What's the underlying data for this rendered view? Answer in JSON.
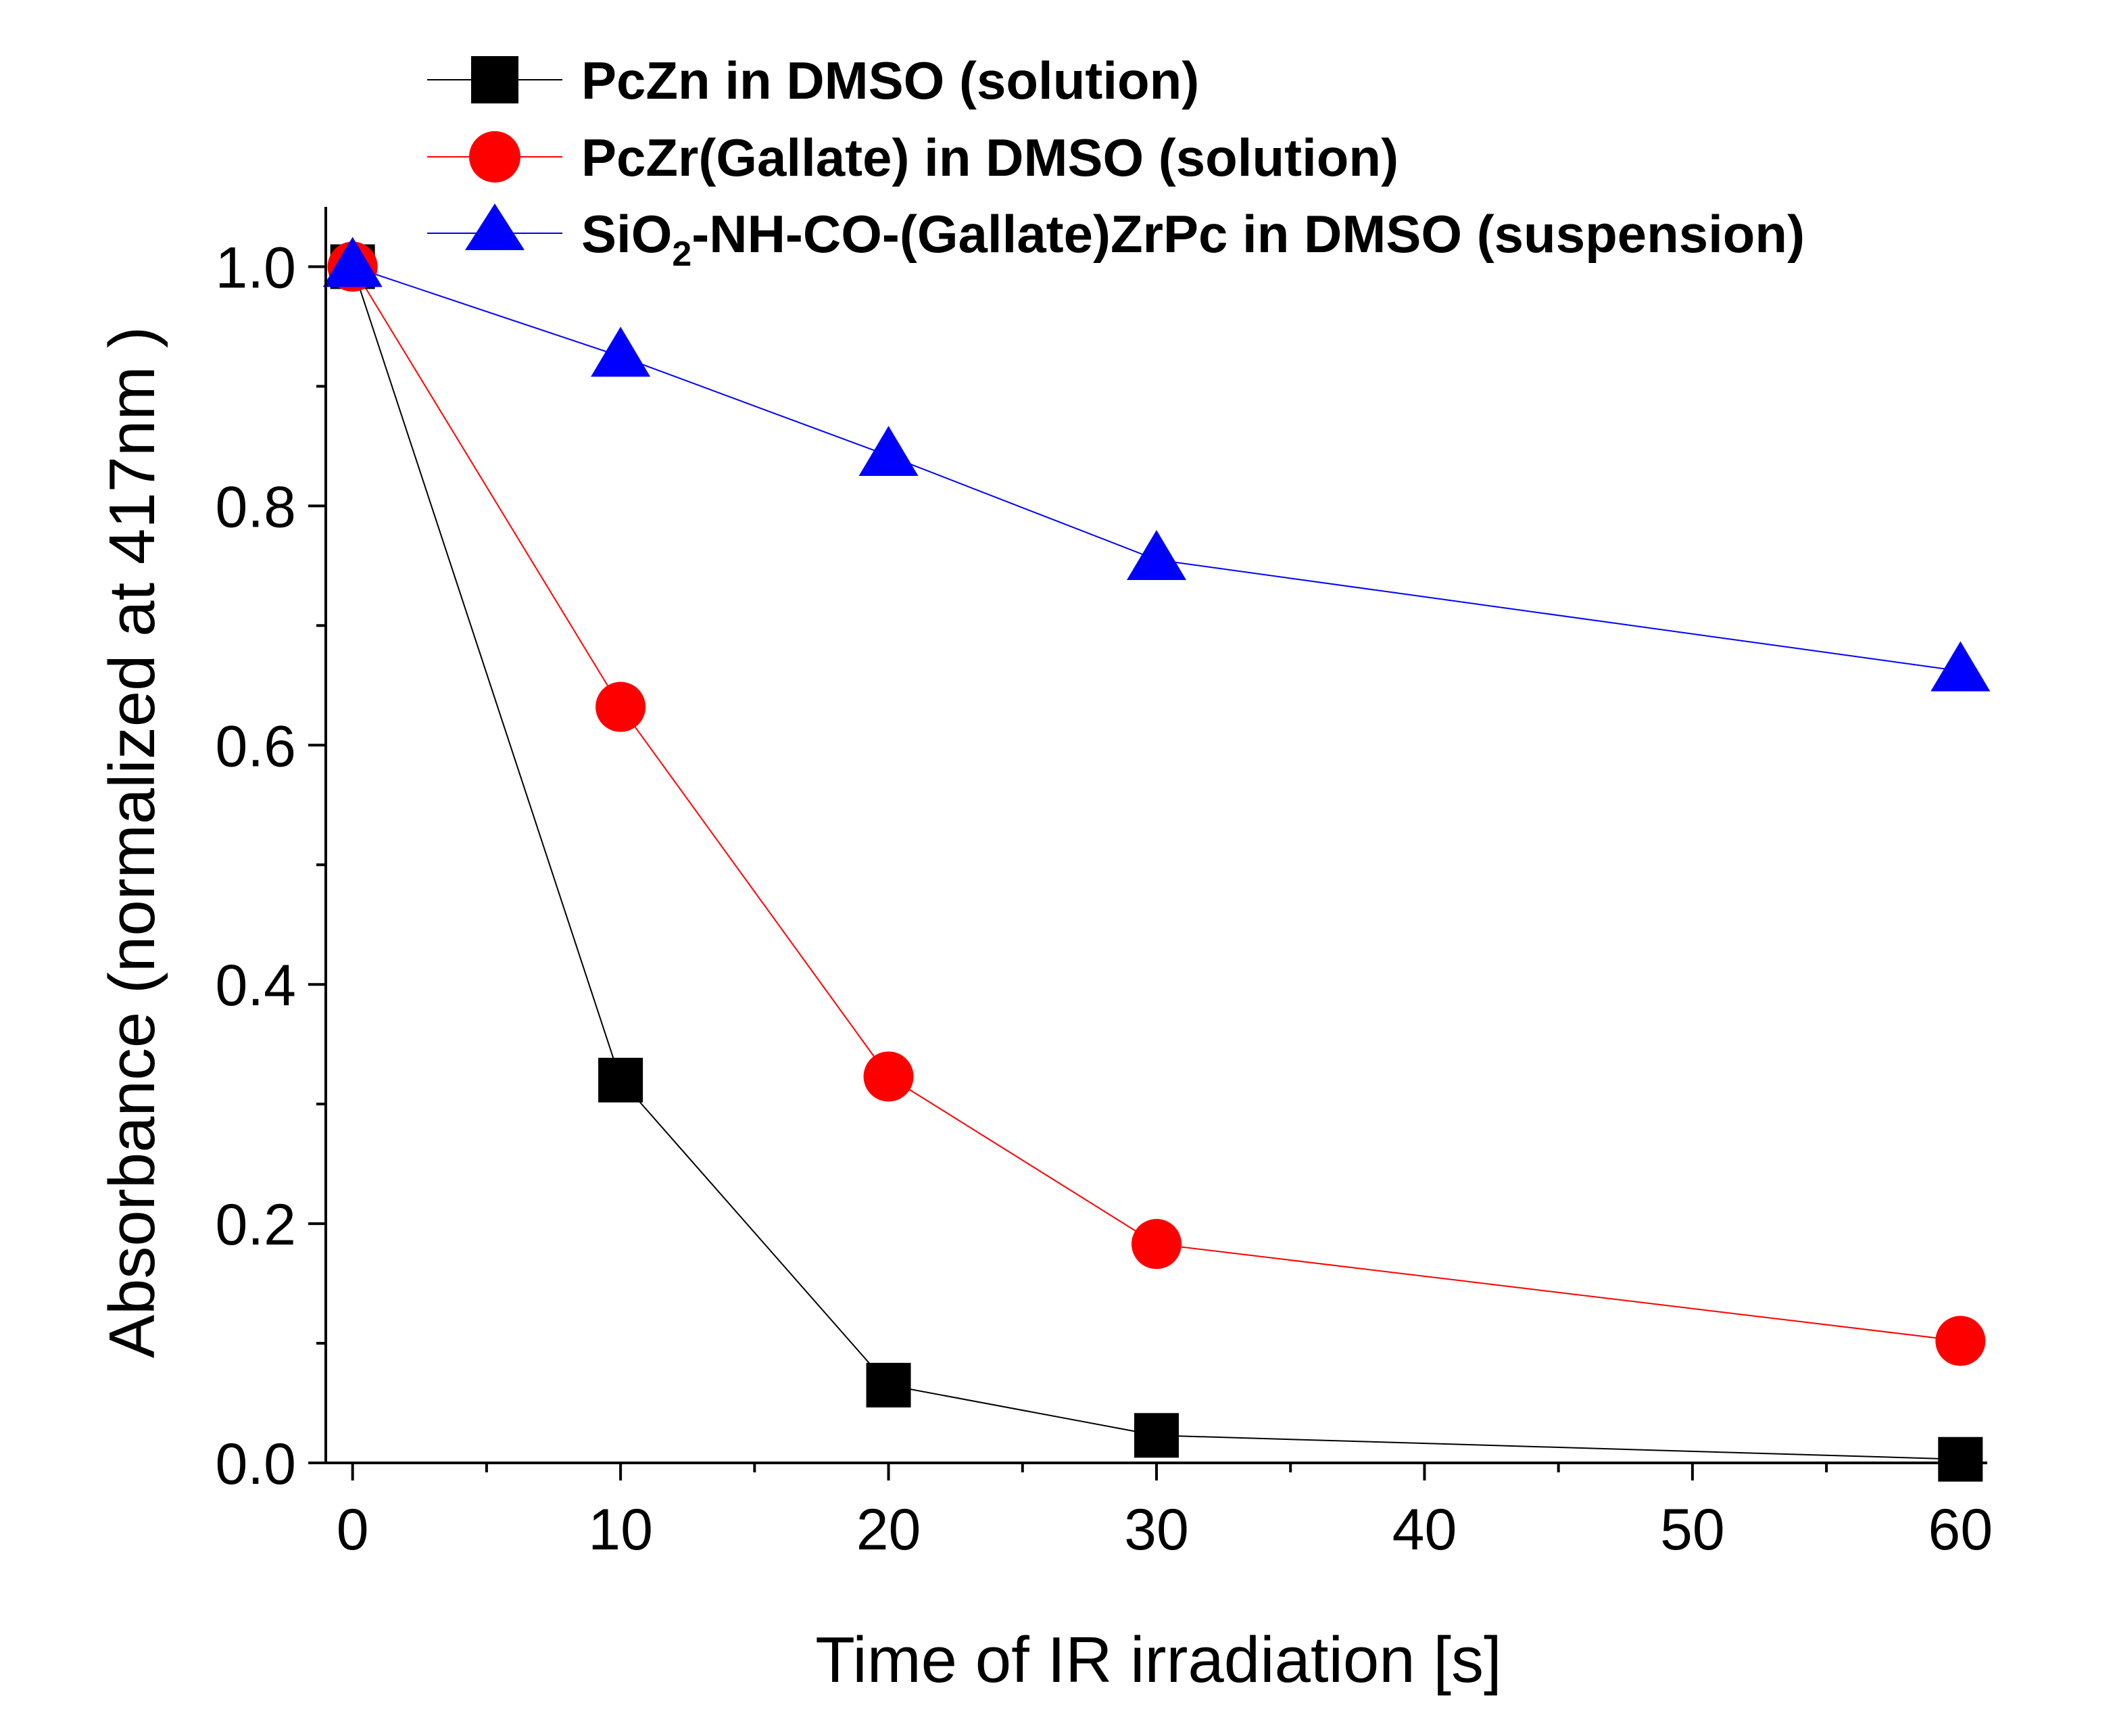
{
  "chart_data": {
    "type": "line",
    "title": "",
    "xlabel": "Time of IR irradiation [s]",
    "ylabel": "Absorbance (normalized at 417nm )",
    "xlim": [
      -1,
      61
    ],
    "ylim": [
      0.0,
      1.05
    ],
    "xticks": [
      0,
      10,
      20,
      30,
      40,
      50,
      60
    ],
    "xtick_labels": [
      "0",
      "10",
      "20",
      "30",
      "40",
      "50",
      "60"
    ],
    "yticks": [
      0.0,
      0.2,
      0.4,
      0.6,
      0.8,
      1.0
    ],
    "ytick_labels": [
      "0.0",
      "0.2",
      "0.4",
      "0.6",
      "0.8",
      "1.0"
    ],
    "grid": false,
    "legend_position": "top",
    "series": [
      {
        "name": "PcZn in DMSO (solution)",
        "marker": "square",
        "color": "#000000",
        "x": [
          0,
          10,
          20,
          30,
          60
        ],
        "y": [
          1.0,
          0.32,
          0.065,
          0.023,
          0.003
        ]
      },
      {
        "name": "PcZr(Gallate) in DMSO (solution)",
        "marker": "circle",
        "color": "#ff0000",
        "x": [
          0,
          10,
          20,
          30,
          60
        ],
        "y": [
          1.0,
          0.632,
          0.323,
          0.183,
          0.102
        ]
      },
      {
        "name": "SiO2-NH-CO-(Gallate)ZrPc in DMSO (suspension)",
        "marker": "triangle",
        "color": "#0000ff",
        "x": [
          0,
          10,
          20,
          30,
          60
        ],
        "y": [
          1.0,
          0.925,
          0.842,
          0.755,
          0.662
        ]
      }
    ],
    "legend": [
      {
        "main": "PcZn in DMSO (solution)"
      },
      {
        "main": "PcZr(Gallate) in DMSO (solution)"
      },
      {
        "pre": "SiO",
        "sub": "2",
        "post": "-NH-CO-(Gallate)ZrPc in DMSO (suspension)"
      }
    ]
  }
}
